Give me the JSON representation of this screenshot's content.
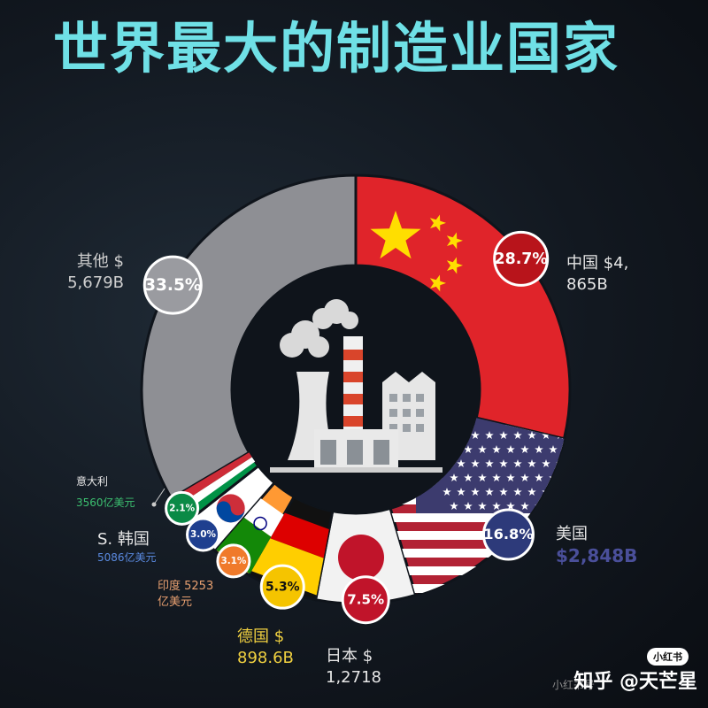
{
  "title": "世界最大的制造业国家",
  "chart_data": {
    "type": "donut",
    "title": "世界最大的制造业国家",
    "slices": [
      {
        "name": "中国",
        "label_line1": "中国 $4,",
        "label_line2": "865B",
        "percent": 28.7,
        "pct_label": "28.7%",
        "color": "#e0242a",
        "badge_color": "#b8141b",
        "pct_text_color": "#ffffff",
        "label_color": "#e6e6e6"
      },
      {
        "name": "美国",
        "label_line1": "美国",
        "label_line2": "$2,848B",
        "percent": 16.8,
        "pct_label": "16.8%",
        "color": "#b22234",
        "badge_color": "#2d3a7a",
        "pct_text_color": "#ffffff",
        "label_color": "#e6e6e6",
        "label2_color": "#4a4f9a"
      },
      {
        "name": "日本",
        "label_line1": "日本 $",
        "label_line2": "1,2718",
        "percent": 7.5,
        "pct_label": "7.5%",
        "color": "#f2f2f2",
        "badge_color": "#c0142a",
        "pct_text_color": "#ffffff",
        "label_color": "#e6e6e6"
      },
      {
        "name": "德国",
        "label_line1": "德国 $",
        "label_line2": "898.6B",
        "percent": 5.3,
        "pct_label": "5.3%",
        "color": "#111111",
        "badge_color": "#f5c400",
        "pct_text_color": "#111111",
        "label_color": "#f0d040"
      },
      {
        "name": "印度",
        "label_line1": "印度 5253",
        "label_line2": "亿美元",
        "percent": 3.1,
        "pct_label": "3.1%",
        "color": "#ff9933",
        "badge_color": "#f07a2a",
        "pct_text_color": "#ffffff",
        "label_color": "#e8a070"
      },
      {
        "name": "韩国",
        "label_line1": "S. 韩国",
        "label_line2": "5086亿美元",
        "percent": 3.0,
        "pct_label": "3.0%",
        "color": "#ffffff",
        "badge_color": "#1f3f8f",
        "pct_text_color": "#ffffff",
        "label_color": "#e6e6e6",
        "label2_color": "#5a8ae0"
      },
      {
        "name": "意大利",
        "label_line1": "意大利",
        "label_line2": "3560亿美元",
        "percent": 2.1,
        "pct_label": "2.1%",
        "color": "#009246",
        "badge_color": "#0a8a46",
        "pct_text_color": "#ffffff",
        "label_color": "#e6e6e6",
        "label2_color": "#3cc070"
      },
      {
        "name": "其他",
        "label_line1": "其他 $",
        "label_line2": "5,679B",
        "percent": 33.5,
        "pct_label": "33.5%",
        "color": "#8e8f94",
        "badge_color": "#9a9ba0",
        "pct_text_color": "#ffffff",
        "label_color": "#cfcfcf"
      }
    ]
  },
  "watermark": {
    "text": "知乎 @天芒星",
    "sub": "小红书号",
    "badge": "小红书"
  },
  "icons": {
    "center": "factory-icon"
  }
}
